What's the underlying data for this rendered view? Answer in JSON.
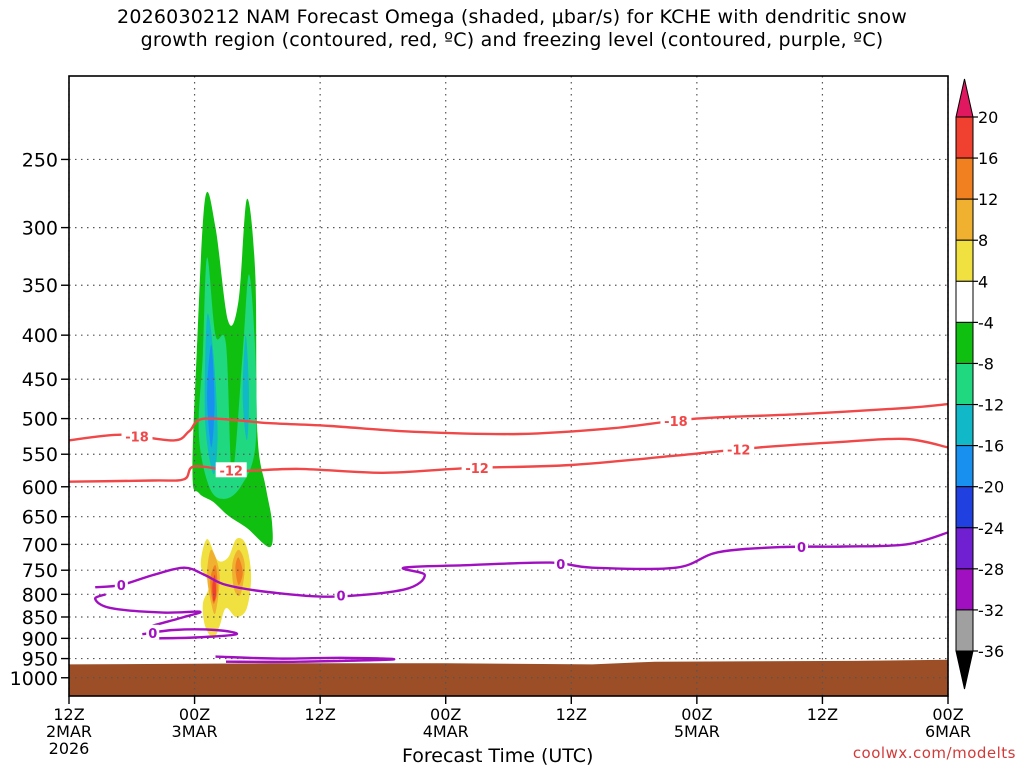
{
  "title": {
    "line1": "2026030212 NAM Forecast Omega (shaded, μbar/s) for KCHE with dendritic snow",
    "line2": "growth region (contoured, red, ºC) and freezing level (contoured, purple, ºC)"
  },
  "watermark": "coolwx.com/modelts",
  "chart_data": {
    "type": "heatmap",
    "xlabel": "Forecast Time (UTC)",
    "x_ticks": [
      {
        "hours": 0,
        "lines": [
          "12Z",
          "2MAR",
          "2026"
        ]
      },
      {
        "hours": 12,
        "lines": [
          "00Z",
          "3MAR"
        ]
      },
      {
        "hours": 24,
        "lines": [
          "12Z"
        ]
      },
      {
        "hours": 36,
        "lines": [
          "00Z",
          "4MAR"
        ]
      },
      {
        "hours": 48,
        "lines": [
          "12Z"
        ]
      },
      {
        "hours": 60,
        "lines": [
          "00Z",
          "5MAR"
        ]
      },
      {
        "hours": 72,
        "lines": [
          "12Z"
        ]
      },
      {
        "hours": 84,
        "lines": [
          "00Z",
          "6MAR"
        ]
      }
    ],
    "xlim_hours": [
      0,
      84
    ],
    "y_ticks": [
      250,
      300,
      350,
      400,
      450,
      500,
      550,
      600,
      650,
      700,
      750,
      800,
      850,
      900,
      950,
      1000
    ],
    "ylim": [
      200,
      1050
    ],
    "y_scale": "log",
    "grid": true,
    "colorbar": {
      "levels": [
        20,
        16,
        12,
        8,
        4,
        -4,
        -8,
        -12,
        -16,
        -20,
        -24,
        -28,
        -32,
        -36
      ],
      "colors": [
        "#e0185f",
        "#f04030",
        "#f08020",
        "#f0b030",
        "#f0e040",
        "#ffffff",
        "#10c010",
        "#20d880",
        "#10b8c8",
        "#1890f0",
        "#2040e0",
        "#7020d0",
        "#a010c0",
        "#a0a0a0",
        "#000000"
      ]
    },
    "isotherms": [
      {
        "label": "-18",
        "color": "#f04848",
        "points": [
          [
            0,
            530
          ],
          [
            5,
            522
          ],
          [
            10,
            530
          ],
          [
            11.5,
            517
          ],
          [
            13,
            500
          ],
          [
            19,
            506
          ],
          [
            25,
            510
          ],
          [
            33,
            518
          ],
          [
            43,
            521
          ],
          [
            52,
            513
          ],
          [
            60,
            500
          ],
          [
            70,
            494
          ],
          [
            80,
            486
          ],
          [
            84,
            481
          ]
        ],
        "label_at_hours": [
          6.5,
          58
        ]
      },
      {
        "label": "-12",
        "color": "#f04848",
        "points": [
          [
            0,
            592
          ],
          [
            8,
            590
          ],
          [
            11,
            588
          ],
          [
            12,
            568
          ],
          [
            16,
            575
          ],
          [
            22,
            572
          ],
          [
            30,
            578
          ],
          [
            38,
            571
          ],
          [
            48,
            566
          ],
          [
            58,
            552
          ],
          [
            66,
            540
          ],
          [
            74,
            532
          ],
          [
            80,
            528
          ],
          [
            84,
            540
          ]
        ],
        "label_at_hours": [
          15.5,
          39,
          64
        ]
      },
      {
        "label": "0",
        "color": "#a010c0",
        "points": [
          [
            2.5,
            785
          ],
          [
            5,
            780
          ],
          [
            8,
            760
          ],
          [
            11,
            745
          ],
          [
            13,
            760
          ],
          [
            15,
            780
          ],
          [
            19,
            795
          ],
          [
            25,
            805
          ],
          [
            32,
            790
          ],
          [
            34,
            760
          ],
          [
            32,
            745
          ],
          [
            38,
            740
          ],
          [
            46,
            735
          ],
          [
            50,
            745
          ],
          [
            58,
            745
          ],
          [
            62,
            715
          ],
          [
            68,
            705
          ],
          [
            74,
            704
          ],
          [
            80,
            700
          ],
          [
            84,
            678
          ]
        ],
        "label_at_hours": [
          5,
          26,
          47,
          70
        ]
      },
      {
        "label": "0",
        "color": "#a010c0",
        "points": [
          [
            8,
            870
          ],
          [
            11,
            850
          ],
          [
            12.5,
            838
          ],
          [
            9,
            840
          ],
          [
            4,
            830
          ],
          [
            2.5,
            810
          ],
          [
            3.5,
            800
          ]
        ],
        "label_at_hours": []
      },
      {
        "label": "0",
        "color": "#a010c0",
        "points": [
          [
            7,
            890
          ],
          [
            10,
            880
          ],
          [
            14,
            880
          ],
          [
            16,
            890
          ],
          [
            12,
            898
          ],
          [
            8,
            900
          ]
        ],
        "label_at_hours": [
          8
        ]
      },
      {
        "label": "0",
        "color": "#a010c0",
        "points": [
          [
            14,
            945
          ],
          [
            20,
            950
          ],
          [
            26,
            948
          ],
          [
            31,
            952
          ],
          [
            22,
            958
          ],
          [
            15,
            958
          ]
        ],
        "label_at_hours": []
      }
    ],
    "omega_regions": [
      {
        "level": -8,
        "color": "#10c010",
        "points": [
          [
            11.8,
            580
          ],
          [
            12.2,
            420
          ],
          [
            13.0,
            278
          ],
          [
            14.0,
            300
          ],
          [
            15.2,
            385
          ],
          [
            16.2,
            365
          ],
          [
            17.0,
            278
          ],
          [
            17.8,
            340
          ],
          [
            18.0,
            520
          ],
          [
            18.8,
            600
          ],
          [
            19.4,
            660
          ],
          [
            19.2,
            705
          ],
          [
            17.0,
            670
          ],
          [
            15.2,
            648
          ],
          [
            13.8,
            625
          ],
          [
            12.4,
            610
          ]
        ]
      },
      {
        "level": -12,
        "color": "#20d880",
        "points": [
          [
            12.4,
            520
          ],
          [
            12.8,
            420
          ],
          [
            13.2,
            325
          ],
          [
            14.0,
            400
          ],
          [
            15.0,
            410
          ],
          [
            15.6,
            580
          ],
          [
            16.6,
            420
          ],
          [
            17.2,
            340
          ],
          [
            17.8,
            420
          ],
          [
            17.8,
            540
          ],
          [
            16.4,
            600
          ],
          [
            14.8,
            620
          ],
          [
            13.4,
            600
          ]
        ]
      },
      {
        "level": -16,
        "color": "#10b8c8",
        "points": [
          [
            13.0,
            500
          ],
          [
            13.2,
            380
          ],
          [
            13.8,
            420
          ],
          [
            14.2,
            520
          ],
          [
            13.8,
            580
          ]
        ]
      },
      {
        "level": -16,
        "color": "#10b8c8",
        "points": [
          [
            16.6,
            470
          ],
          [
            16.9,
            400
          ],
          [
            17.2,
            470
          ],
          [
            17.0,
            530
          ]
        ]
      },
      {
        "level": -20,
        "color": "#1890f0",
        "points": [
          [
            13.2,
            470
          ],
          [
            13.6,
            410
          ],
          [
            13.9,
            480
          ],
          [
            13.6,
            540
          ]
        ]
      },
      {
        "level": 4,
        "color": "#f0e040",
        "points": [
          [
            12.6,
            740
          ],
          [
            13.2,
            690
          ],
          [
            14.2,
            730
          ],
          [
            15.2,
            725
          ],
          [
            16.0,
            690
          ],
          [
            16.9,
            700
          ],
          [
            17.4,
            760
          ],
          [
            17.0,
            830
          ],
          [
            16.0,
            850
          ],
          [
            15.0,
            830
          ],
          [
            14.4,
            870
          ],
          [
            13.8,
            900
          ],
          [
            13.0,
            870
          ],
          [
            12.8,
            820
          ],
          [
            13.4,
            780
          ]
        ]
      },
      {
        "level": 8,
        "color": "#f0b030",
        "points": [
          [
            13.2,
            760
          ],
          [
            13.6,
            710
          ],
          [
            14.4,
            760
          ],
          [
            14.0,
            840
          ],
          [
            13.6,
            820
          ]
        ]
      },
      {
        "level": 8,
        "color": "#f0b030",
        "points": [
          [
            15.6,
            740
          ],
          [
            16.2,
            710
          ],
          [
            16.8,
            740
          ],
          [
            16.4,
            800
          ],
          [
            15.8,
            790
          ]
        ]
      },
      {
        "level": 12,
        "color": "#f08020",
        "points": [
          [
            13.5,
            770
          ],
          [
            14.0,
            740
          ],
          [
            14.2,
            790
          ],
          [
            13.8,
            820
          ]
        ]
      },
      {
        "level": 12,
        "color": "#f08020",
        "points": [
          [
            15.9,
            745
          ],
          [
            16.2,
            725
          ],
          [
            16.6,
            755
          ],
          [
            16.2,
            780
          ]
        ]
      },
      {
        "level": 16,
        "color": "#f04030",
        "points": [
          [
            13.7,
            780
          ],
          [
            13.95,
            760
          ],
          [
            14.05,
            800
          ],
          [
            13.8,
            815
          ]
        ]
      }
    ],
    "terrain": {
      "color": "#9c4e26",
      "points": [
        [
          0,
          965
        ],
        [
          20,
          962
        ],
        [
          36,
          962
        ],
        [
          50,
          965
        ],
        [
          56,
          958
        ],
        [
          66,
          957
        ],
        [
          75,
          956
        ],
        [
          84,
          953
        ]
      ]
    }
  }
}
